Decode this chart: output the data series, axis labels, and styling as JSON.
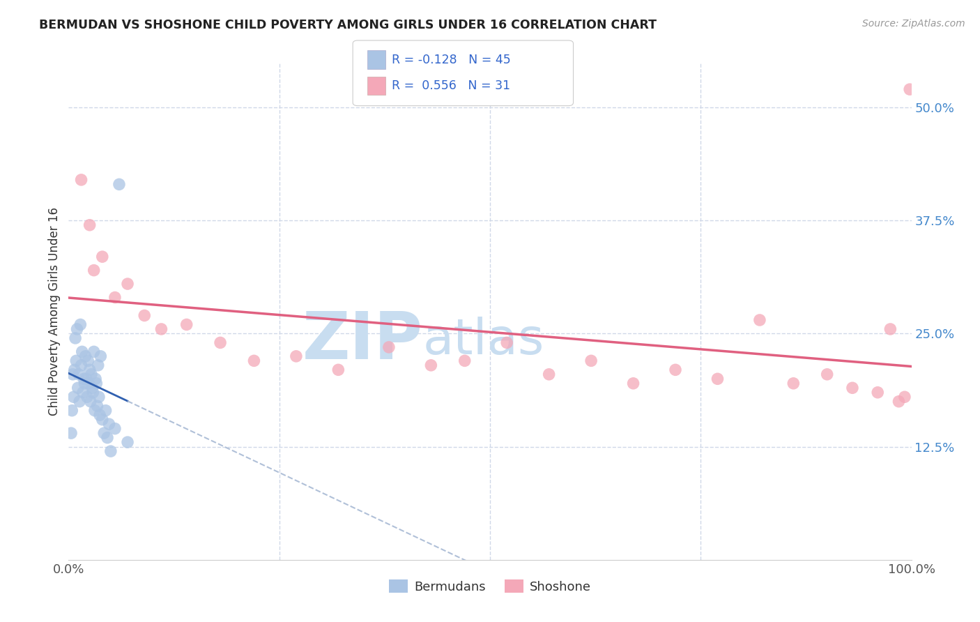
{
  "title": "BERMUDAN VS SHOSHONE CHILD POVERTY AMONG GIRLS UNDER 16 CORRELATION CHART",
  "source": "Source: ZipAtlas.com",
  "ylabel": "Child Poverty Among Girls Under 16",
  "xlim": [
    0,
    100
  ],
  "ylim": [
    0,
    55
  ],
  "yticks": [
    0,
    12.5,
    25.0,
    37.5,
    50.0
  ],
  "r_bermudan": -0.128,
  "n_bermudan": 45,
  "r_shoshone": 0.556,
  "n_shoshone": 31,
  "color_bermudan": "#aac4e4",
  "color_shoshone": "#f4a8b8",
  "line_color_bermudan_solid": "#3060b0",
  "line_color_bermudan_dashed": "#b0c0d8",
  "line_color_shoshone": "#e06080",
  "watermark_zip": "ZIP",
  "watermark_atlas": "atlas",
  "watermark_color": "#c8ddf0",
  "background_color": "#ffffff",
  "grid_color": "#d0d8e8",
  "bermudans_x": [
    0.3,
    0.4,
    0.5,
    0.6,
    0.7,
    0.8,
    0.9,
    1.0,
    1.1,
    1.2,
    1.3,
    1.4,
    1.5,
    1.6,
    1.7,
    1.8,
    1.9,
    2.0,
    2.1,
    2.2,
    2.3,
    2.4,
    2.5,
    2.6,
    2.7,
    2.8,
    2.9,
    3.0,
    3.1,
    3.2,
    3.3,
    3.4,
    3.5,
    3.6,
    3.7,
    3.8,
    4.0,
    4.2,
    4.4,
    4.6,
    4.8,
    5.0,
    5.5,
    6.0,
    7.0
  ],
  "bermudans_y": [
    14.0,
    16.5,
    20.5,
    18.0,
    21.0,
    24.5,
    22.0,
    25.5,
    19.0,
    20.5,
    17.5,
    26.0,
    21.5,
    23.0,
    18.5,
    20.0,
    19.5,
    22.5,
    20.0,
    18.0,
    22.0,
    19.5,
    21.0,
    17.5,
    20.5,
    19.0,
    18.5,
    23.0,
    16.5,
    20.0,
    19.5,
    17.0,
    21.5,
    18.0,
    16.0,
    22.5,
    15.5,
    14.0,
    16.5,
    13.5,
    15.0,
    12.0,
    14.5,
    41.5,
    13.0
  ],
  "shoshone_x": [
    1.5,
    2.5,
    3.0,
    4.0,
    5.5,
    7.0,
    9.0,
    11.0,
    14.0,
    18.0,
    22.0,
    27.0,
    32.0,
    38.0,
    43.0,
    47.0,
    52.0,
    57.0,
    62.0,
    67.0,
    72.0,
    77.0,
    82.0,
    86.0,
    90.0,
    93.0,
    96.0,
    97.5,
    98.5,
    99.2,
    99.8
  ],
  "shoshone_y": [
    42.0,
    37.0,
    32.0,
    33.5,
    29.0,
    30.5,
    27.0,
    25.5,
    26.0,
    24.0,
    22.0,
    22.5,
    21.0,
    23.5,
    21.5,
    22.0,
    24.0,
    20.5,
    22.0,
    19.5,
    21.0,
    20.0,
    26.5,
    19.5,
    20.5,
    19.0,
    18.5,
    25.5,
    17.5,
    18.0,
    52.0
  ]
}
